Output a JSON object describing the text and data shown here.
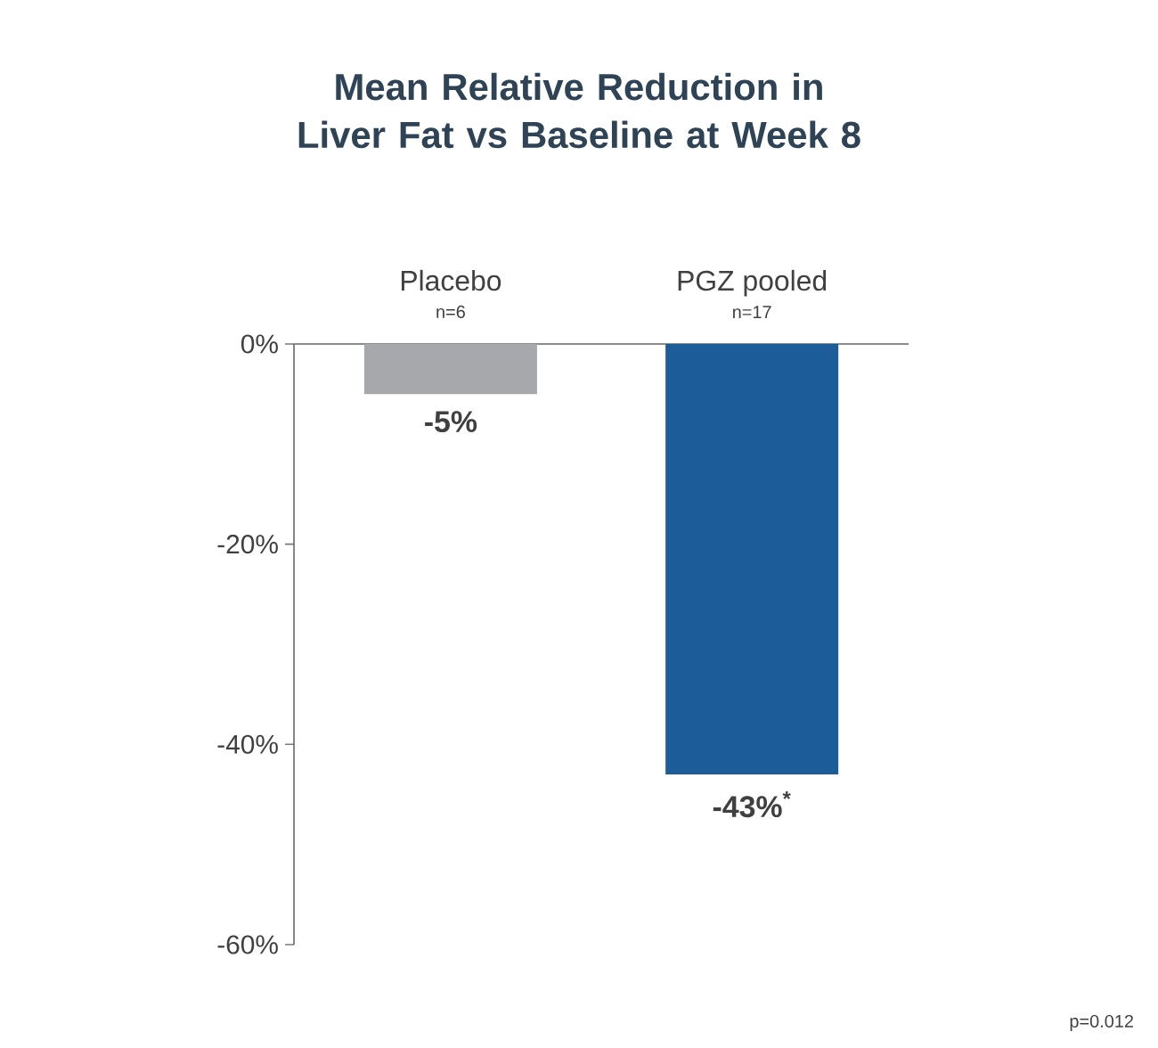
{
  "chart_data": {
    "type": "bar",
    "title": "Mean Relative Reduction in Liver Fat vs Baseline at Week 8",
    "categories": [
      "Placebo",
      "PGZ pooled"
    ],
    "values": [
      -5,
      -43
    ],
    "colors": [
      "#a6a8ab",
      "#1c5d99"
    ],
    "value_labels": [
      "-5%",
      "-43%$^{*}$"
    ],
    "ylim": [
      -60,
      0
    ],
    "yticks": [
      {
        "value": -60,
        "label": "-60%"
      },
      {
        "value": -40,
        "label": "-40%"
      },
      {
        "value": -20,
        "label": "-20%"
      },
      {
        "value": 0,
        "label": "0%"
      }
    ],
    "annotations": [
      {
        "text": "n=6",
        "x": "Placebo",
        "y": 0
      },
      {
        "text": "n=17",
        "x": "PGZ pooled",
        "y": 0
      },
      "p=0.012"
    ],
    "grid": false
  }
}
